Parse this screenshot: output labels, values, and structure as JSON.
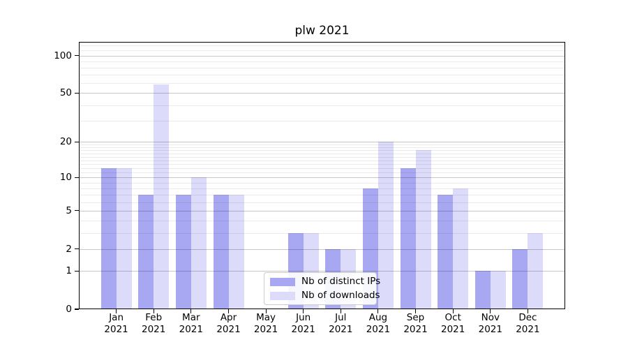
{
  "title": "plw 2021",
  "chart_data": {
    "type": "bar",
    "title": "plw 2021",
    "categories": [
      "Jan 2021",
      "Feb 2021",
      "Mar 2021",
      "Apr 2021",
      "May 2021",
      "Jun 2021",
      "Jul 2021",
      "Aug 2021",
      "Sep 2021",
      "Oct 2021",
      "Nov 2021",
      "Dec 2021"
    ],
    "months": [
      "Jan",
      "Feb",
      "Mar",
      "Apr",
      "May",
      "Jun",
      "Jul",
      "Aug",
      "Sep",
      "Oct",
      "Nov",
      "Dec"
    ],
    "year": "2021",
    "series": [
      {
        "name": "Nb of distinct IPs",
        "color": "#a8a8f2",
        "values": [
          12,
          7,
          7,
          7,
          0,
          3,
          2,
          8,
          12,
          7,
          1,
          2
        ]
      },
      {
        "name": "Nb of downloads",
        "color": "#dcdcfa",
        "values": [
          12,
          59,
          10,
          7,
          0,
          3,
          2,
          20,
          17,
          8,
          1,
          3
        ]
      }
    ],
    "y_axis": {
      "scale": "log10(value+1)",
      "major_ticks": [
        0,
        1,
        2,
        5,
        10,
        20,
        50,
        100
      ],
      "minor_ticks": [
        3,
        4,
        6,
        7,
        8,
        9,
        11,
        12,
        13,
        14,
        15,
        16,
        17,
        18,
        19,
        30,
        40,
        60,
        70,
        80,
        90,
        110,
        120
      ],
      "range_top": 128
    },
    "grid": "major+minor horizontal",
    "legend_position": "bottom-center-left"
  }
}
